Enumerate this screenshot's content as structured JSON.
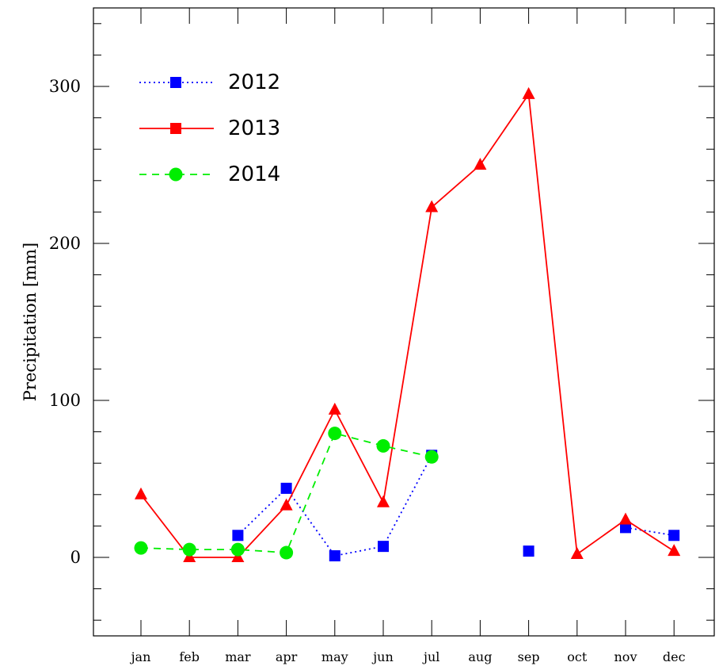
{
  "chart_data": {
    "type": "line",
    "title": "",
    "xlabel": "",
    "ylabel": "Precipitation [mm]",
    "categories": [
      "jan",
      "feb",
      "mar",
      "apr",
      "may",
      "jun",
      "jul",
      "aug",
      "sep",
      "oct",
      "nov",
      "dec"
    ],
    "ylim": [
      -50,
      350
    ],
    "yticks": [
      0,
      100,
      200,
      300
    ],
    "legend_position": "top-left",
    "series": [
      {
        "name": "2012",
        "color": "#0000ff",
        "line_style": "dotted",
        "marker": "square",
        "values": [
          null,
          null,
          14,
          44,
          1,
          7,
          65,
          null,
          4,
          null,
          19,
          14
        ]
      },
      {
        "name": "2013",
        "color": "#ff0000",
        "line_style": "solid",
        "marker": "triangle",
        "values": [
          40,
          0,
          0,
          33,
          94,
          35,
          223,
          250,
          295,
          2,
          24,
          4
        ]
      },
      {
        "name": "2014",
        "color": "#00ee00",
        "line_style": "dashed",
        "marker": "circle",
        "values": [
          6,
          5,
          5,
          3,
          79,
          71,
          64,
          null,
          null,
          null,
          null,
          null
        ]
      }
    ]
  }
}
